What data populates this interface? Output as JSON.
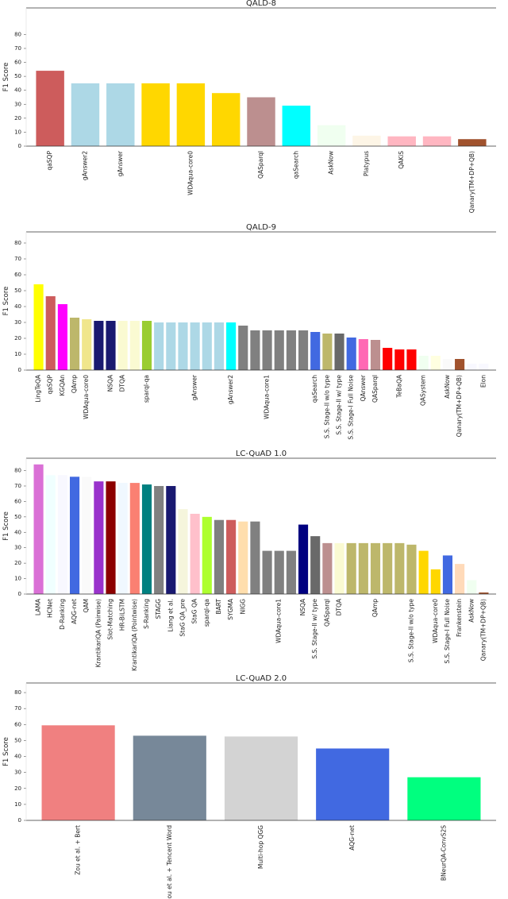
{
  "chart_data": [
    {
      "type": "bar",
      "title": "QALD-8",
      "y_label": "F1 Score",
      "categories": [
        "qaSQP",
        "gAnswer2",
        "gAnswer",
        null,
        "WDAqua-core0",
        null,
        "QASparql",
        "qaSearch",
        "AskNow",
        "Platypus",
        "QAKiS",
        null,
        "Qanary(TM+DP+QB)"
      ],
      "values": [
        54,
        45,
        45,
        45,
        45,
        38,
        35,
        29,
        15,
        7.5,
        7,
        7,
        5
      ],
      "colors": [
        "#cd5c5c",
        "#add8e6",
        "#add8e6",
        "#ffd700",
        "#ffd700",
        "#ffd700",
        "#bc8f8f",
        "#00ffff",
        "#f0fff0",
        "#fdf5e6",
        "#ffb6c1",
        "#ffb6c1",
        "#a0522d"
      ],
      "ylim": [
        0,
        99
      ],
      "yticks": [
        0,
        10,
        20,
        30,
        40,
        50,
        60,
        70,
        80
      ]
    },
    {
      "type": "bar",
      "title": "QALD-9",
      "y_label": "F1 Score",
      "categories": [
        "LingTeQA",
        "qaSQP",
        "KGQAn",
        "QAmp",
        "WDAqua-core0",
        null,
        "NSQA",
        "DTQA",
        null,
        "sparql-qa",
        null,
        null,
        null,
        "gAnswer",
        null,
        null,
        "gAnswer2",
        null,
        null,
        "WDAqua-core1",
        null,
        null,
        null,
        "qaSearch",
        "S.S. Stage-II w/o type",
        "S.S. Stage-II w/ type",
        "S.S. Stage-I Full Noise",
        "QAnswer",
        "QASparql",
        null,
        "TeBaQA",
        null,
        "QASystem",
        null,
        "AskNow",
        "Qanary(TM+DP+QB)",
        null,
        "Elon"
      ],
      "values": [
        54,
        46.5,
        41.5,
        33,
        32,
        31,
        31,
        31,
        31,
        31,
        30,
        30,
        30,
        30,
        30,
        30,
        30,
        28,
        25,
        25,
        25,
        25,
        25,
        24,
        23,
        23,
        20.5,
        19.5,
        19,
        14,
        13,
        13,
        9,
        9,
        7,
        7,
        4,
        4
      ],
      "colors": [
        "#ffff00",
        "#cd5c5c",
        "#ff00ff",
        "#bdb76b",
        "#f0e68c",
        "#191970",
        "#191970",
        "#fafad2",
        "#fafad2",
        "#9acd32",
        "#add8e6",
        "#add8e6",
        "#add8e6",
        "#add8e6",
        "#add8e6",
        "#add8e6",
        "#00ffff",
        "#808080",
        "#808080",
        "#808080",
        "#808080",
        "#808080",
        "#808080",
        "#4169e1",
        "#bdb76b",
        "#696969",
        "#4169e1",
        "#ff69b4",
        "#bc8f8f",
        "#ff0000",
        "#ff0000",
        "#ff0000",
        "#f0fff0",
        "#ffffe0",
        "#fafafa",
        "#a0522d",
        "#f8f8ff",
        "#f8f8ff"
      ],
      "ylim": [
        0,
        87
      ],
      "yticks": [
        0,
        10,
        20,
        30,
        40,
        50,
        60,
        70,
        80
      ]
    },
    {
      "type": "bar",
      "title": "LC-QuAD 1.0",
      "y_label": "F1 Score",
      "categories": [
        "LAMA",
        "HCNet",
        "D-Ranking",
        "AQG-net",
        "QAM",
        "KrantikariQA (Pairwise)",
        "Slot-Matching",
        "HR-BiLSTM",
        "KrantikariQA (Pointwise)",
        "S-Ranking",
        "STAGG",
        "Liang et al.",
        "StaG QA_pre",
        "StaG QA",
        "sparql-qa",
        "BART",
        "SYGMA",
        "NIGG",
        null,
        null,
        "WDAqua-core1",
        null,
        "NSQA",
        "S.S. Stage-II w/ type",
        "QASparql",
        "DTQA",
        null,
        null,
        "QAmp",
        null,
        null,
        "S.S. Stage-II w/o type",
        null,
        "WDAqua-core0",
        "S.S. Stage-I Full Noise",
        "Frankenstein",
        "AskNow",
        "Qanary(TM+DP+QB)"
      ],
      "values": [
        84,
        77,
        77,
        76,
        76,
        73,
        73,
        72,
        72,
        71,
        70,
        70,
        55,
        52,
        50,
        48,
        48,
        47,
        47,
        28,
        28,
        28,
        45,
        37.5,
        33,
        33,
        33,
        33,
        33,
        33,
        33,
        32,
        28,
        16,
        25,
        19.5,
        9,
        1
      ],
      "colors": [
        "#da70d6",
        "#f0ffff",
        "#f8f8ff",
        "#4169e1",
        "#fafafa",
        "#9932cc",
        "#8b0000",
        "#f0f8ff",
        "#fa8072",
        "#008080",
        "#808080",
        "#191970",
        "#f5f5dc",
        "#ffc0cb",
        "#adff2f",
        "#808080",
        "#cd5c5c",
        "#ffdead",
        "#808080",
        "#808080",
        "#808080",
        "#808080",
        "#000080",
        "#696969",
        "#bc8f8f",
        "#fafad2",
        "#bdb76b",
        "#bdb76b",
        "#bdb76b",
        "#bdb76b",
        "#bdb76b",
        "#bdb76b",
        "#ffd700",
        "#ffd700",
        "#4169e1",
        "#ffdab9",
        "#f0fff0",
        "#a0522d"
      ],
      "ylim": [
        0,
        88
      ],
      "yticks": [
        0,
        10,
        20,
        30,
        40,
        50,
        60,
        70,
        80
      ]
    },
    {
      "type": "bar",
      "title": "LC-QuAD 2.0",
      "y_label": "F1 Score",
      "categories": [
        "Zou et al. + Bert",
        "Zou et al. + Tencent Word",
        "Multi-hop QGG",
        "AQG-net",
        "BNeurQA-ConvS2S"
      ],
      "values": [
        59.5,
        53,
        52.5,
        45,
        27
      ],
      "colors": [
        "#f08080",
        "#778899",
        "#d3d3d3",
        "#4169e1",
        "#00ff7f"
      ],
      "ylim": [
        0,
        86
      ],
      "yticks": [
        0,
        10,
        20,
        30,
        40,
        50,
        60,
        70,
        80
      ]
    }
  ]
}
